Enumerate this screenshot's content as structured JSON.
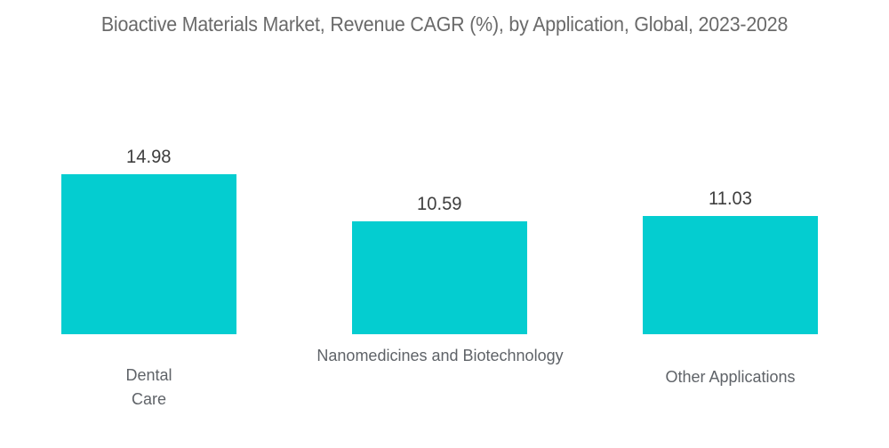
{
  "colors": {
    "background": "#ffffff",
    "bar": "#04cdd0",
    "title_text": "#6a6a6a",
    "value_label_text": "#3e3e3e",
    "category_label_text": "#5f6368"
  },
  "chart_data": {
    "type": "bar",
    "title": "Bioactive Materials Market, Revenue CAGR (%), by Application, Global, 2023-2028",
    "categories": [
      "Dental Care",
      "Nanomedicines and Biotechnology",
      "Other Applications"
    ],
    "values": [
      14.98,
      10.59,
      11.03
    ],
    "value_labels": [
      "14.98",
      "10.59",
      "11.03"
    ],
    "unit": "%",
    "xlabel": "",
    "ylabel": "",
    "ylim": [
      0,
      15
    ],
    "grid": false,
    "legend": false,
    "axes_shown": false,
    "bar_color": "#04cdd0"
  }
}
